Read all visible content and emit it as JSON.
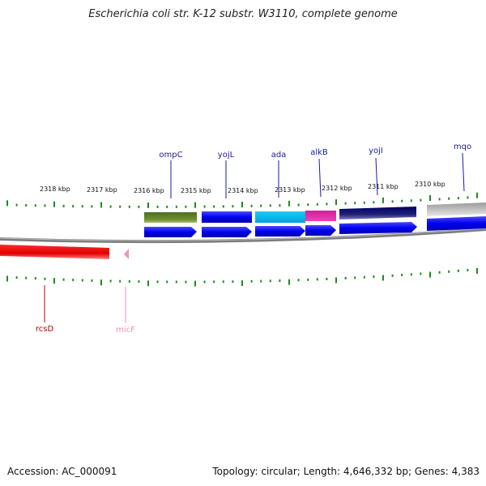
{
  "title": "Escherichia coli str. K-12 substr. W3110, complete genome",
  "footer": {
    "accession": "Accession: AC_000091",
    "topology": "Topology: circular; Length: 4,646,332 bp; Genes: 4,383"
  },
  "colors": {
    "backbone": "#8a8a8a",
    "tick": "#1f8a1f",
    "gene_label_blue": "#1a1aa0",
    "rcsD": "#b00000",
    "micF": "#f090c0"
  },
  "scale_labels": [
    "2318 kbp",
    "2317 kbp",
    "2316 kbp",
    "2315 kbp",
    "2314 kbp",
    "2313 kbp",
    "2312 kbp",
    "2311 kbp",
    "2310 kbp"
  ],
  "genes_above": [
    {
      "name": "ompC",
      "color": "#1a1aa0"
    },
    {
      "name": "yojL",
      "color": "#1a1aa0"
    },
    {
      "name": "ada",
      "color": "#1a1aa0"
    },
    {
      "name": "alkB",
      "color": "#1a1aa0"
    },
    {
      "name": "yojI",
      "color": "#1a1aa0"
    },
    {
      "name": "mqo",
      "color": "#1a1aa0"
    }
  ],
  "genes_below": [
    {
      "name": "rcsD",
      "color": "#b00000"
    },
    {
      "name": "micF",
      "color": "#f090c0"
    }
  ]
}
